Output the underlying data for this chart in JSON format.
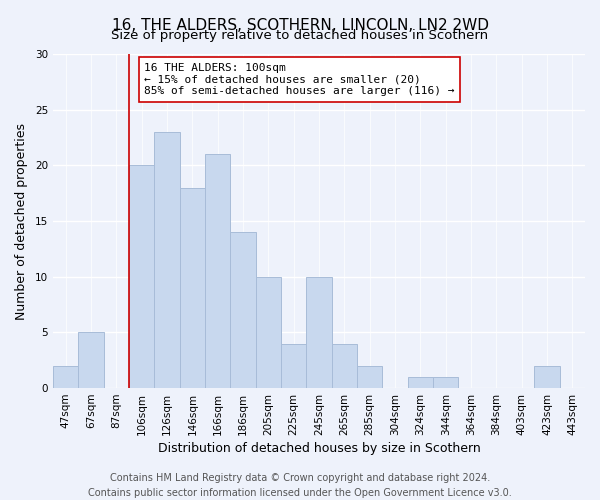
{
  "title": "16, THE ALDERS, SCOTHERN, LINCOLN, LN2 2WD",
  "subtitle": "Size of property relative to detached houses in Scothern",
  "xlabel": "Distribution of detached houses by size in Scothern",
  "ylabel": "Number of detached properties",
  "bar_labels": [
    "47sqm",
    "67sqm",
    "87sqm",
    "106sqm",
    "126sqm",
    "146sqm",
    "166sqm",
    "186sqm",
    "205sqm",
    "225sqm",
    "245sqm",
    "265sqm",
    "285sqm",
    "304sqm",
    "324sqm",
    "344sqm",
    "364sqm",
    "384sqm",
    "403sqm",
    "423sqm",
    "443sqm"
  ],
  "bar_values": [
    2,
    5,
    0,
    20,
    23,
    18,
    21,
    14,
    10,
    4,
    10,
    4,
    2,
    0,
    1,
    1,
    0,
    0,
    0,
    2,
    0
  ],
  "bar_color": "#c8d8ee",
  "bar_edge_color": "#a8bcd8",
  "ylim": [
    0,
    30
  ],
  "yticks": [
    0,
    5,
    10,
    15,
    20,
    25,
    30
  ],
  "vline_color": "#cc0000",
  "annotation_line1": "16 THE ALDERS: 100sqm",
  "annotation_line2": "← 15% of detached houses are smaller (20)",
  "annotation_line3": "85% of semi-detached houses are larger (116) →",
  "annotation_box_color": "#ffffff",
  "annotation_box_edge": "#cc0000",
  "footer_line1": "Contains HM Land Registry data © Crown copyright and database right 2024.",
  "footer_line2": "Contains public sector information licensed under the Open Government Licence v3.0.",
  "background_color": "#eef2fb",
  "plot_bg_color": "#eef2fb",
  "grid_color": "#ffffff",
  "title_fontsize": 11,
  "subtitle_fontsize": 9.5,
  "axis_label_fontsize": 9,
  "tick_fontsize": 7.5,
  "annotation_fontsize": 8,
  "footer_fontsize": 7
}
